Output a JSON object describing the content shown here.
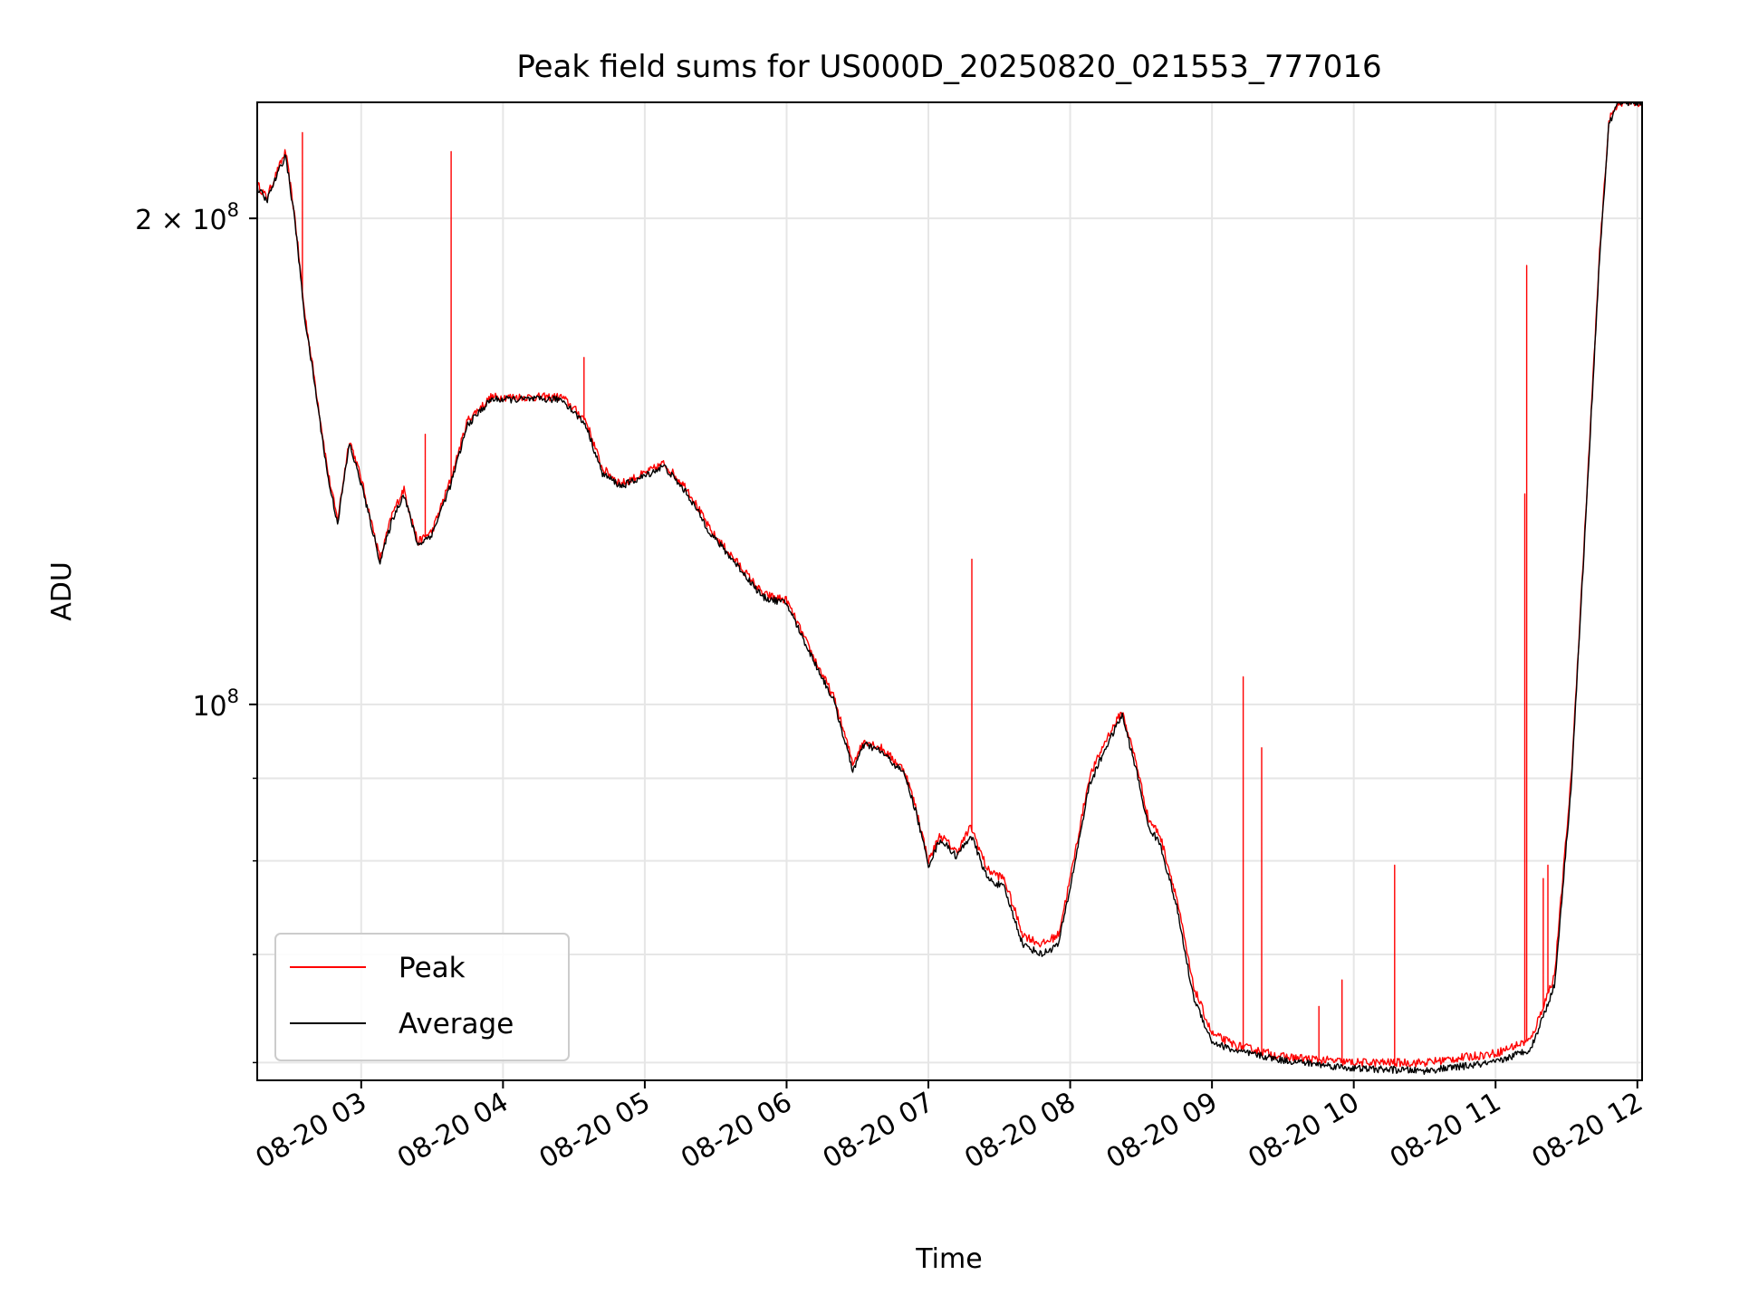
{
  "chart_data": {
    "type": "line",
    "title": "Peak field sums for US000D_20250820_021553_777016",
    "xlabel": "Time",
    "ylabel": "ADU",
    "y_scale": "log",
    "grid": true,
    "legend_position": "lower-left",
    "x_tick_labels": [
      "08-20 03",
      "08-20 04",
      "08-20 05",
      "08-20 06",
      "08-20 07",
      "08-20 08",
      "08-20 09",
      "08-20 10",
      "08-20 11",
      "08-20 12"
    ],
    "x_ticks": [
      "2025-08-20T03:00",
      "2025-08-20T04:00",
      "2025-08-20T05:00",
      "2025-08-20T06:00",
      "2025-08-20T07:00",
      "2025-08-20T08:00",
      "2025-08-20T09:00",
      "2025-08-20T10:00",
      "2025-08-20T11:00",
      "2025-08-20T12:00"
    ],
    "xlim": [
      "2025-08-20T02:16",
      "2025-08-20T12:02"
    ],
    "y_ticks_major": [
      {
        "value": 100000000,
        "label_base": "10",
        "label_exp": "8"
      },
      {
        "value": 200000000,
        "label_base": "2 × 10",
        "label_exp": "8"
      }
    ],
    "ylim": [
      58500000,
      236000000
    ],
    "series": [
      {
        "name": "Peak",
        "color": "#ff0000",
        "base_points": [
          [
            "2025-08-20T02:16",
            210000000
          ],
          [
            "2025-08-20T02:20",
            206000000
          ],
          [
            "2025-08-20T02:24",
            213000000
          ],
          [
            "2025-08-20T02:28",
            220000000
          ],
          [
            "2025-08-20T02:32",
            200000000
          ],
          [
            "2025-08-20T02:36",
            175000000
          ],
          [
            "2025-08-20T02:40",
            160000000
          ],
          [
            "2025-08-20T02:46",
            139000000
          ],
          [
            "2025-08-20T02:50",
            130000000
          ],
          [
            "2025-08-20T02:55",
            146000000
          ],
          [
            "2025-08-20T03:00",
            138000000
          ],
          [
            "2025-08-20T03:08",
            123000000
          ],
          [
            "2025-08-20T03:13",
            131000000
          ],
          [
            "2025-08-20T03:18",
            136000000
          ],
          [
            "2025-08-20T03:24",
            126000000
          ],
          [
            "2025-08-20T03:30",
            128000000
          ],
          [
            "2025-08-20T03:38",
            138000000
          ],
          [
            "2025-08-20T03:45",
            150000000
          ],
          [
            "2025-08-20T03:55",
            155000000
          ],
          [
            "2025-08-20T04:10",
            155000000
          ],
          [
            "2025-08-20T04:25",
            155000000
          ],
          [
            "2025-08-20T04:35",
            150000000
          ],
          [
            "2025-08-20T04:42",
            140000000
          ],
          [
            "2025-08-20T04:50",
            137000000
          ],
          [
            "2025-08-20T05:00",
            139000000
          ],
          [
            "2025-08-20T05:08",
            141000000
          ],
          [
            "2025-08-20T05:18",
            136000000
          ],
          [
            "2025-08-20T05:28",
            128000000
          ],
          [
            "2025-08-20T05:40",
            122000000
          ],
          [
            "2025-08-20T05:50",
            117000000
          ],
          [
            "2025-08-20T06:00",
            116000000
          ],
          [
            "2025-08-20T06:10",
            108000000
          ],
          [
            "2025-08-20T06:20",
            101000000
          ],
          [
            "2025-08-20T06:28",
            92000000
          ],
          [
            "2025-08-20T06:33",
            95000000
          ],
          [
            "2025-08-20T06:40",
            94000000
          ],
          [
            "2025-08-20T06:50",
            91000000
          ],
          [
            "2025-08-20T06:55",
            86000000
          ],
          [
            "2025-08-20T07:00",
            80000000
          ],
          [
            "2025-08-20T07:05",
            83000000
          ],
          [
            "2025-08-20T07:12",
            81000000
          ],
          [
            "2025-08-20T07:18",
            84000000
          ],
          [
            "2025-08-20T07:25",
            79000000
          ],
          [
            "2025-08-20T07:32",
            78000000
          ],
          [
            "2025-08-20T07:40",
            72000000
          ],
          [
            "2025-08-20T07:48",
            71000000
          ],
          [
            "2025-08-20T07:55",
            72000000
          ],
          [
            "2025-08-20T08:00",
            78000000
          ],
          [
            "2025-08-20T08:08",
            90000000
          ],
          [
            "2025-08-20T08:15",
            95000000
          ],
          [
            "2025-08-20T08:22",
            99000000
          ],
          [
            "2025-08-20T08:28",
            92000000
          ],
          [
            "2025-08-20T08:33",
            85000000
          ],
          [
            "2025-08-20T08:38",
            83000000
          ],
          [
            "2025-08-20T08:45",
            76000000
          ],
          [
            "2025-08-20T08:52",
            67000000
          ],
          [
            "2025-08-20T09:00",
            62500000
          ],
          [
            "2025-08-20T09:10",
            61500000
          ],
          [
            "2025-08-20T09:30",
            60500000
          ],
          [
            "2025-08-20T10:00",
            60000000
          ],
          [
            "2025-08-20T10:30",
            60000000
          ],
          [
            "2025-08-20T11:00",
            60800000
          ],
          [
            "2025-08-20T11:15",
            62000000
          ],
          [
            "2025-08-20T11:25",
            68000000
          ],
          [
            "2025-08-20T11:32",
            90000000
          ],
          [
            "2025-08-20T11:38",
            130000000
          ],
          [
            "2025-08-20T11:44",
            190000000
          ],
          [
            "2025-08-20T11:48",
            230000000
          ],
          [
            "2025-08-20T11:52",
            236000000
          ],
          [
            "2025-08-20T12:02",
            236000000
          ]
        ],
        "spikes": [
          [
            "2025-08-20T02:35",
            226000000
          ],
          [
            "2025-08-20T03:27",
            147000000
          ],
          [
            "2025-08-20T03:38",
            220000000
          ],
          [
            "2025-08-20T04:34",
            164000000
          ],
          [
            "2025-08-20T07:18",
            123000000
          ],
          [
            "2025-08-20T09:13",
            104000000
          ],
          [
            "2025-08-20T09:21",
            94000000
          ],
          [
            "2025-08-20T09:45",
            65000000
          ],
          [
            "2025-08-20T09:55",
            67500000
          ],
          [
            "2025-08-20T10:17",
            79500000
          ],
          [
            "2025-08-20T11:12",
            135000000
          ],
          [
            "2025-08-20T11:13",
            187000000
          ],
          [
            "2025-08-20T11:20",
            78000000
          ],
          [
            "2025-08-20T11:22",
            79500000
          ]
        ]
      },
      {
        "name": "Average",
        "color": "#000000",
        "base_points": [
          [
            "2025-08-20T02:16",
            209000000
          ],
          [
            "2025-08-20T02:20",
            205000000
          ],
          [
            "2025-08-20T02:24",
            212000000
          ],
          [
            "2025-08-20T02:28",
            219000000
          ],
          [
            "2025-08-20T02:32",
            199000000
          ],
          [
            "2025-08-20T02:36",
            174000000
          ],
          [
            "2025-08-20T02:40",
            159000000
          ],
          [
            "2025-08-20T02:46",
            138000000
          ],
          [
            "2025-08-20T02:50",
            129500000
          ],
          [
            "2025-08-20T02:55",
            145000000
          ],
          [
            "2025-08-20T03:00",
            137000000
          ],
          [
            "2025-08-20T03:08",
            122500000
          ],
          [
            "2025-08-20T03:13",
            130000000
          ],
          [
            "2025-08-20T03:18",
            135000000
          ],
          [
            "2025-08-20T03:24",
            125500000
          ],
          [
            "2025-08-20T03:30",
            127500000
          ],
          [
            "2025-08-20T03:38",
            137000000
          ],
          [
            "2025-08-20T03:45",
            149000000
          ],
          [
            "2025-08-20T03:55",
            154500000
          ],
          [
            "2025-08-20T04:10",
            154500000
          ],
          [
            "2025-08-20T04:25",
            154500000
          ],
          [
            "2025-08-20T04:35",
            149000000
          ],
          [
            "2025-08-20T04:42",
            139000000
          ],
          [
            "2025-08-20T04:50",
            136500000
          ],
          [
            "2025-08-20T05:00",
            138500000
          ],
          [
            "2025-08-20T05:08",
            140500000
          ],
          [
            "2025-08-20T05:18",
            135000000
          ],
          [
            "2025-08-20T05:28",
            127500000
          ],
          [
            "2025-08-20T05:40",
            121500000
          ],
          [
            "2025-08-20T05:50",
            116500000
          ],
          [
            "2025-08-20T06:00",
            115500000
          ],
          [
            "2025-08-20T06:10",
            107500000
          ],
          [
            "2025-08-20T06:20",
            100500000
          ],
          [
            "2025-08-20T06:28",
            91000000
          ],
          [
            "2025-08-20T06:33",
            94500000
          ],
          [
            "2025-08-20T06:40",
            93500000
          ],
          [
            "2025-08-20T06:50",
            90500000
          ],
          [
            "2025-08-20T06:55",
            85500000
          ],
          [
            "2025-08-20T07:00",
            79500000
          ],
          [
            "2025-08-20T07:05",
            82500000
          ],
          [
            "2025-08-20T07:12",
            80500000
          ],
          [
            "2025-08-20T07:18",
            83000000
          ],
          [
            "2025-08-20T07:25",
            78000000
          ],
          [
            "2025-08-20T07:32",
            77000000
          ],
          [
            "2025-08-20T07:40",
            71000000
          ],
          [
            "2025-08-20T07:48",
            70000000
          ],
          [
            "2025-08-20T07:55",
            71000000
          ],
          [
            "2025-08-20T08:00",
            77000000
          ],
          [
            "2025-08-20T08:08",
            89000000
          ],
          [
            "2025-08-20T08:15",
            94000000
          ],
          [
            "2025-08-20T08:22",
            98500000
          ],
          [
            "2025-08-20T08:28",
            91000000
          ],
          [
            "2025-08-20T08:33",
            84000000
          ],
          [
            "2025-08-20T08:38",
            82000000
          ],
          [
            "2025-08-20T08:45",
            75000000
          ],
          [
            "2025-08-20T08:52",
            66000000
          ],
          [
            "2025-08-20T09:00",
            61800000
          ],
          [
            "2025-08-20T09:10",
            61000000
          ],
          [
            "2025-08-20T09:30",
            60200000
          ],
          [
            "2025-08-20T10:00",
            59500000
          ],
          [
            "2025-08-20T10:30",
            59300000
          ],
          [
            "2025-08-20T11:00",
            60000000
          ],
          [
            "2025-08-20T11:15",
            61200000
          ],
          [
            "2025-08-20T11:25",
            67000000
          ],
          [
            "2025-08-20T11:32",
            89000000
          ],
          [
            "2025-08-20T11:38",
            129000000
          ],
          [
            "2025-08-20T11:44",
            189000000
          ],
          [
            "2025-08-20T11:48",
            229000000
          ],
          [
            "2025-08-20T11:52",
            236000000
          ],
          [
            "2025-08-20T12:02",
            236000000
          ]
        ],
        "spikes": []
      }
    ]
  }
}
